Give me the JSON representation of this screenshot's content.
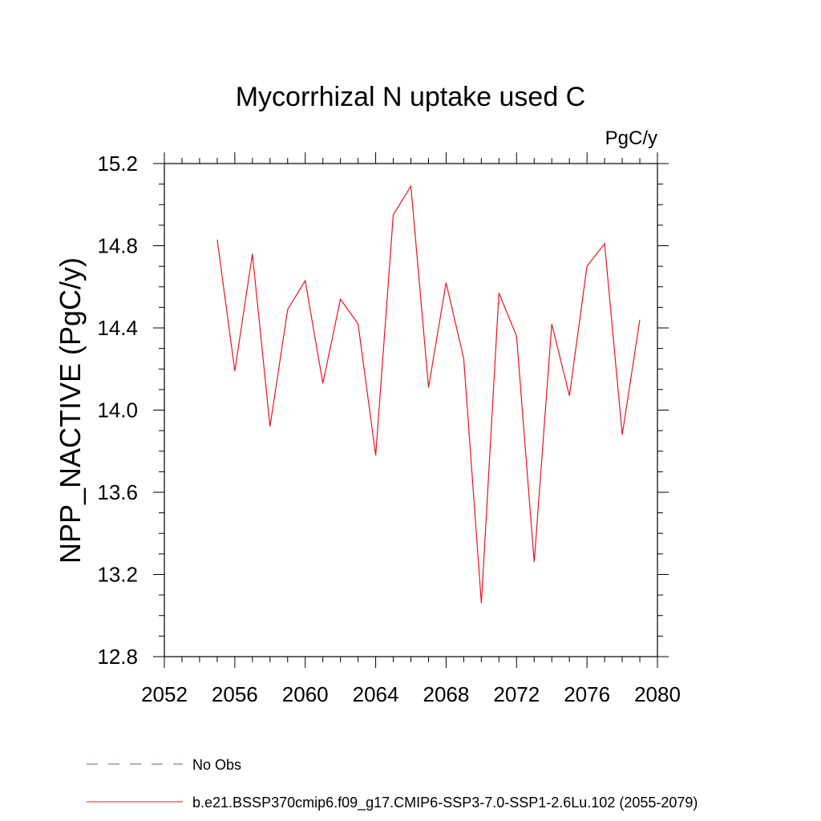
{
  "chart_data": {
    "type": "line",
    "title": "Mycorrhizal N uptake used C",
    "units_label": "PgC/y",
    "ylabel": "NPP_NACTIVE  (PgC/y)",
    "xlabel": "",
    "xlim": [
      2052,
      2080
    ],
    "ylim": [
      12.8,
      15.2
    ],
    "x_ticks": [
      2052,
      2056,
      2060,
      2064,
      2068,
      2072,
      2076,
      2080
    ],
    "x_tick_labels": [
      "2052",
      "2056",
      "2060",
      "2064",
      "2068",
      "2072",
      "2076",
      "2080"
    ],
    "y_ticks": [
      12.8,
      13.2,
      13.6,
      14.0,
      14.4,
      14.8,
      15.2
    ],
    "y_tick_labels": [
      "12.8",
      "13.2",
      "13.6",
      "14.0",
      "14.4",
      "14.8",
      "15.2"
    ],
    "grid": false,
    "legend_position": "bottom-left",
    "series": [
      {
        "name": "b.e21.BSSP370cmip6.f09_g17.CMIP6-SSP3-7.0-SSP1-2.6Lu.102 (2055-2079)",
        "color": "#e8141e",
        "style": "solid",
        "x": [
          2055,
          2056,
          2057,
          2058,
          2059,
          2060,
          2061,
          2062,
          2063,
          2064,
          2065,
          2066,
          2067,
          2068,
          2069,
          2070,
          2071,
          2072,
          2073,
          2074,
          2075,
          2076,
          2077,
          2078,
          2079
        ],
        "y": [
          14.83,
          14.19,
          14.76,
          13.92,
          14.49,
          14.63,
          14.13,
          14.54,
          14.42,
          13.78,
          14.95,
          15.09,
          14.11,
          14.62,
          14.25,
          13.06,
          14.57,
          14.36,
          13.26,
          14.42,
          14.07,
          14.7,
          14.81,
          13.88,
          14.44
        ]
      }
    ],
    "legend_entries": [
      {
        "label": "No Obs",
        "color": "#6e5aa0",
        "style": "dashed"
      },
      {
        "label": "b.e21.BSSP370cmip6.f09_g17.CMIP6-SSP3-7.0-SSP1-2.6Lu.102 (2055-2079)",
        "color": "#e8141e",
        "style": "solid"
      }
    ]
  }
}
